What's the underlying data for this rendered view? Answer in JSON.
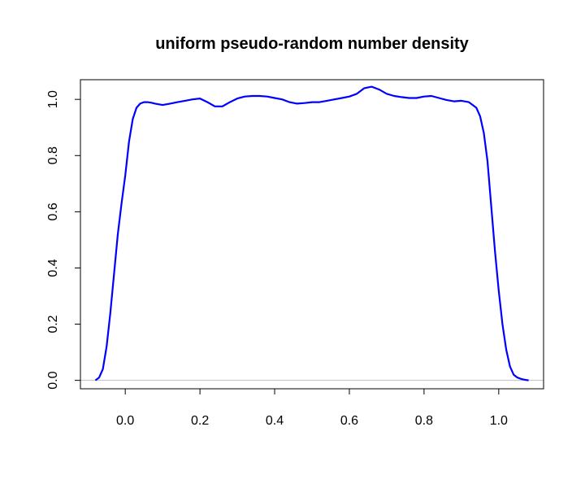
{
  "chart_data": {
    "type": "line",
    "title": "uniform pseudo-random number density",
    "xlabel": "",
    "ylabel": "",
    "xlim": [
      -0.12,
      1.12
    ],
    "ylim": [
      -0.03,
      1.07
    ],
    "x_ticks": [
      0.0,
      0.2,
      0.4,
      0.6,
      0.8,
      1.0
    ],
    "x_tick_labels": [
      "0.0",
      "0.2",
      "0.4",
      "0.6",
      "0.8",
      "1.0"
    ],
    "y_ticks": [
      0.0,
      0.2,
      0.4,
      0.6,
      0.8,
      1.0
    ],
    "y_tick_labels": [
      "0.0",
      "0.2",
      "0.4",
      "0.6",
      "0.8",
      "1.0"
    ],
    "grid": false,
    "baseline": 0,
    "colors": {
      "line": "#0000ff",
      "baseline": "#bebebe",
      "axes": "#000000"
    },
    "series": [
      {
        "x": [
          -0.08,
          -0.07,
          -0.06,
          -0.05,
          -0.04,
          -0.03,
          -0.02,
          -0.01,
          0.0,
          0.01,
          0.02,
          0.03,
          0.04,
          0.05,
          0.06,
          0.07,
          0.08,
          0.1,
          0.12,
          0.14,
          0.16,
          0.18,
          0.2,
          0.22,
          0.24,
          0.26,
          0.28,
          0.3,
          0.32,
          0.34,
          0.36,
          0.38,
          0.4,
          0.42,
          0.44,
          0.46,
          0.48,
          0.5,
          0.52,
          0.54,
          0.56,
          0.58,
          0.6,
          0.62,
          0.64,
          0.66,
          0.68,
          0.7,
          0.72,
          0.74,
          0.76,
          0.78,
          0.8,
          0.82,
          0.84,
          0.86,
          0.88,
          0.9,
          0.92,
          0.94,
          0.95,
          0.96,
          0.97,
          0.98,
          0.99,
          1.0,
          1.01,
          1.02,
          1.03,
          1.04,
          1.05,
          1.06,
          1.07,
          1.08
        ],
        "y": [
          0.0,
          0.01,
          0.04,
          0.12,
          0.24,
          0.38,
          0.52,
          0.63,
          0.73,
          0.85,
          0.93,
          0.97,
          0.985,
          0.99,
          0.99,
          0.988,
          0.985,
          0.98,
          0.985,
          0.99,
          0.995,
          1.0,
          1.003,
          0.99,
          0.975,
          0.975,
          0.99,
          1.003,
          1.01,
          1.012,
          1.012,
          1.01,
          1.005,
          1.0,
          0.99,
          0.985,
          0.987,
          0.99,
          0.99,
          0.995,
          1.0,
          1.005,
          1.01,
          1.02,
          1.04,
          1.045,
          1.035,
          1.02,
          1.012,
          1.008,
          1.005,
          1.005,
          1.01,
          1.012,
          1.005,
          0.998,
          0.993,
          0.995,
          0.99,
          0.97,
          0.94,
          0.88,
          0.78,
          0.62,
          0.46,
          0.32,
          0.2,
          0.11,
          0.05,
          0.02,
          0.01,
          0.005,
          0.002,
          0.0
        ]
      }
    ]
  }
}
